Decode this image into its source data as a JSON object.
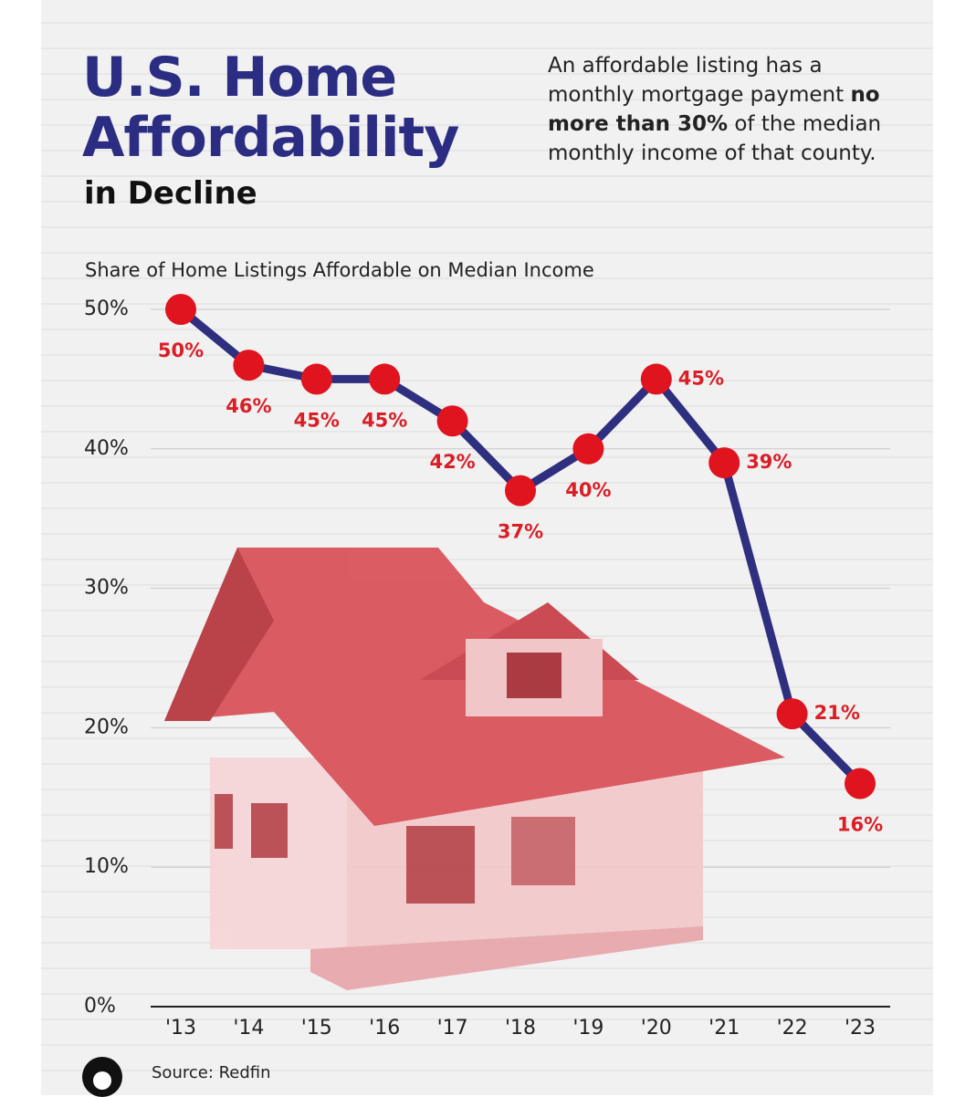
{
  "chart_data": {
    "type": "line",
    "title": "U.S. Home Affordability",
    "subtitle": "in Decline",
    "note": [
      "An affordable listing has a monthly mortgage payment",
      "no more than 30%",
      "of the median monthly income of that county."
    ],
    "y_label": "Share of Home Listings Affordable on Median Income",
    "source": "Source: Redfin",
    "categories": [
      "'13",
      "'14",
      "'15",
      "'16",
      "'17",
      "'18",
      "'19",
      "'20",
      "'21",
      "'22",
      "'23"
    ],
    "series": [
      {
        "name": "Share of Home Listings Affordable on Median Income",
        "color": "#2e2f7f",
        "marker_color": "#e0141e",
        "values": [
          50,
          46,
          45,
          45,
          42,
          37,
          40,
          45,
          39,
          21,
          16
        ],
        "value_labels": [
          "50%",
          "46%",
          "45%",
          "45%",
          "42%",
          "37%",
          "40%",
          "45%",
          "39%",
          "21%",
          "16%"
        ]
      }
    ],
    "ylim": [
      0,
      50
    ],
    "yticks": [
      {
        "value": 0,
        "label": "0%"
      },
      {
        "value": 10,
        "label": "10%"
      },
      {
        "value": 20,
        "label": "20%"
      },
      {
        "value": 30,
        "label": "30%"
      },
      {
        "value": 40,
        "label": "40%"
      },
      {
        "value": 50,
        "label": "50%"
      }
    ],
    "grid": true
  }
}
